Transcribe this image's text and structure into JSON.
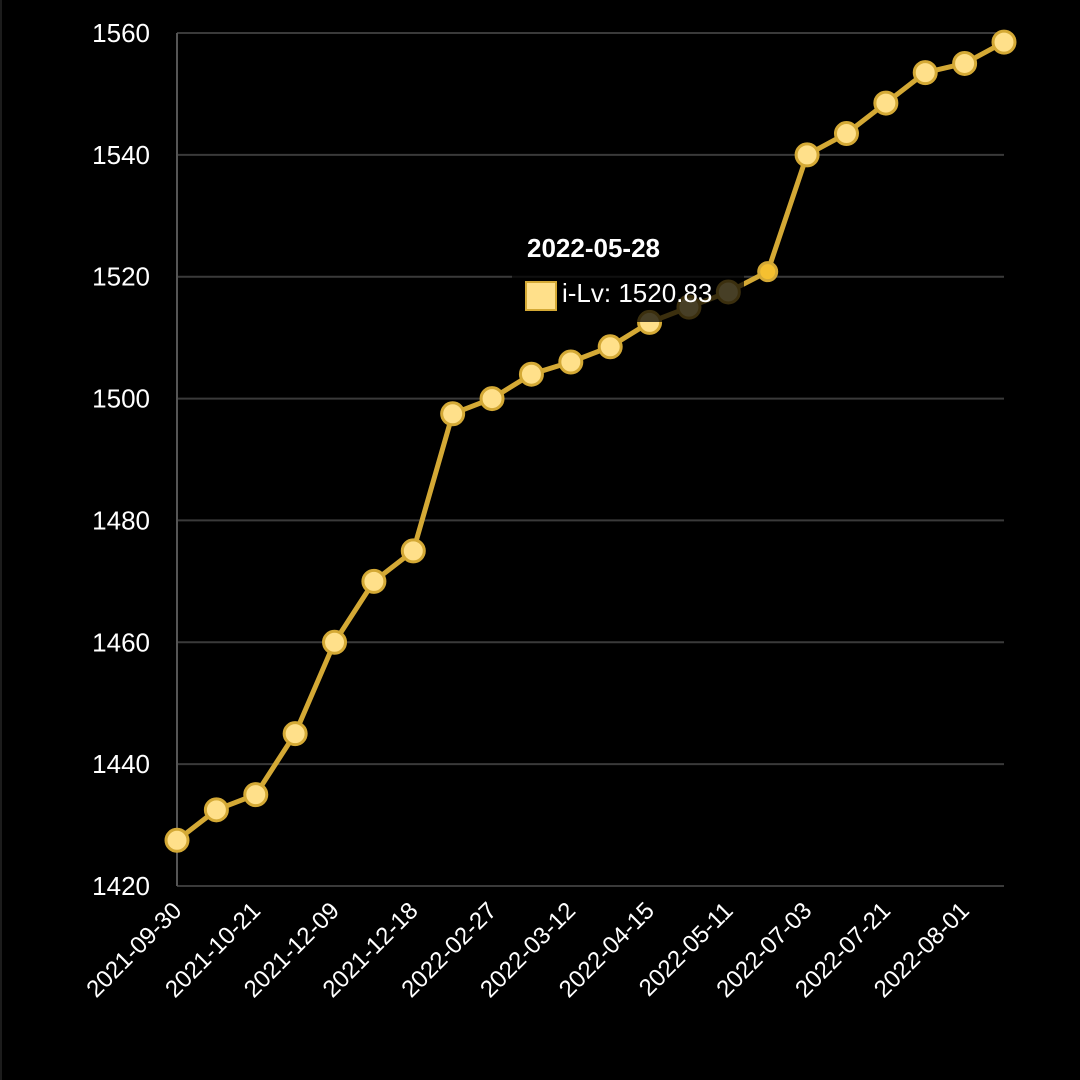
{
  "chart_data": {
    "type": "line",
    "title": "",
    "xlabel": "",
    "ylabel": "",
    "ylim": [
      1420,
      1560
    ],
    "yticks": [
      1420,
      1440,
      1460,
      1480,
      1500,
      1520,
      1540,
      1560
    ],
    "grid": true,
    "x": [
      "2021-09-30",
      "",
      "2021-10-21",
      "",
      "2021-12-09",
      "",
      "2021-12-18",
      "",
      "2022-02-27",
      "",
      "2022-03-12",
      "",
      "2022-04-15",
      "",
      "2022-05-11",
      "",
      "2022-07-03",
      "",
      "2022-07-21",
      "",
      "2022-08-01",
      ""
    ],
    "xtick_labels": [
      "2021-09-30",
      "2021-10-21",
      "2021-12-09",
      "2021-12-18",
      "2022-02-27",
      "2022-03-12",
      "2022-04-15",
      "2022-05-11",
      "2022-07-03",
      "2022-07-21",
      "2022-08-01"
    ],
    "series": [
      {
        "name": "i-Lv",
        "color": "#d4a935",
        "point_fill": "#ffe08a",
        "values": [
          1427.5,
          1432.5,
          1435,
          1445,
          1460,
          1470,
          1475,
          1497.5,
          1500,
          1504,
          1506,
          1508.5,
          1512.5,
          1515,
          1517.5,
          1520.83,
          1540,
          1543.5,
          1548.5,
          1553.5,
          1555,
          1558.5
        ]
      }
    ],
    "tooltip": {
      "date": "2022-05-28",
      "label": "i-Lv: 1520.83",
      "index": 15,
      "swatch_color": "#ffe08a"
    }
  }
}
